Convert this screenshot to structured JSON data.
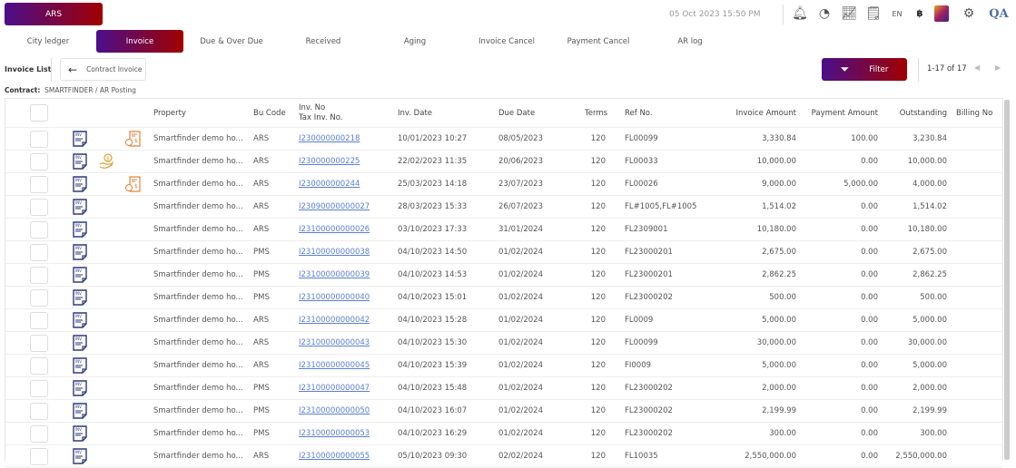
{
  "header": {
    "brand": "ARS",
    "datetime": "05 Oct 2023  15:50 PM",
    "lang": "EN",
    "currency": "฿",
    "user": "QA",
    "icons": [
      "bell-icon",
      "speedometer-icon",
      "chart-line-icon",
      "report-icon",
      "palette-icon",
      "gear-icon"
    ]
  },
  "tabs": [
    "City ledger",
    "Invoice",
    "Due & Over Due",
    "Received",
    "Aging",
    "Invoice Cancel",
    "Payment Cancel",
    "AR log"
  ],
  "active_tab": "Invoice",
  "toolbar": {
    "list_label": "Invoice List",
    "contract_button": "Contract Invoice",
    "filter_button": "Filter",
    "pager": "1-17 of 17"
  },
  "contract": {
    "label": "Contract:",
    "value": "SMARTFINDER / AR Posting"
  },
  "colors": {
    "gradient_start": "#4b0f8a",
    "gradient_end": "#a00000",
    "link": "#5a7fd6",
    "icon_orange": "#e8803a",
    "icon_navy": "#2e3a7a"
  },
  "table": {
    "headers": {
      "property": "Property",
      "bu": "Bu Code",
      "inv1": "Inv. No",
      "inv2": "Tax Inv. No.",
      "inv_date": "Inv. Date",
      "due": "Due Date",
      "terms": "Terms",
      "ref": "Ref No.",
      "amount": "Invoice Amount",
      "payment": "Payment Amount",
      "outstanding": "Outstanding",
      "billing": "Billing No"
    },
    "rows": [
      {
        "icon": "receipt",
        "property": "Smartfinder demo ho...",
        "bu": "ARS",
        "inv": "I230000000218",
        "inv_date": "10/01/2023 10:27",
        "due": "08/05/2023",
        "terms": "120",
        "ref": "FL00099",
        "amount": "3,330.84",
        "payment": "100.00",
        "outstanding": "3,230.84",
        "billing": ""
      },
      {
        "icon": "hand",
        "property": "Smartfinder demo ho...",
        "bu": "ARS",
        "inv": "I230000000225",
        "inv_date": "22/02/2023 11:35",
        "due": "20/06/2023",
        "terms": "120",
        "ref": "FL00033",
        "amount": "10,000.00",
        "payment": "0.00",
        "outstanding": "10,000.00",
        "billing": ""
      },
      {
        "icon": "receipt",
        "property": "Smartfinder demo ho...",
        "bu": "ARS",
        "inv": "I230000000244",
        "inv_date": "25/03/2023 14:18",
        "due": "23/07/2023",
        "terms": "120",
        "ref": "FL00026",
        "amount": "9,000.00",
        "payment": "5,000.00",
        "outstanding": "4,000.00",
        "billing": ""
      },
      {
        "icon": "",
        "property": "Smartfinder demo ho...",
        "bu": "ARS",
        "inv": "I23090000000027",
        "inv_date": "28/03/2023 15:33",
        "due": "26/07/2023",
        "terms": "120",
        "ref": "FL#1005,FL#1005",
        "amount": "1,514.02",
        "payment": "0.00",
        "outstanding": "1,514.02",
        "billing": ""
      },
      {
        "icon": "",
        "property": "Smartfinder demo ho...",
        "bu": "ARS",
        "inv": "I23100000000026",
        "inv_date": "03/10/2023 17:33",
        "due": "31/01/2024",
        "terms": "120",
        "ref": "FL2309001",
        "amount": "10,180.00",
        "payment": "0.00",
        "outstanding": "10,180.00",
        "billing": ""
      },
      {
        "icon": "",
        "property": "Smartfinder demo ho...",
        "bu": "PMS",
        "inv": "I23100000000038",
        "inv_date": "04/10/2023 14:50",
        "due": "01/02/2024",
        "terms": "120",
        "ref": "FL23000201",
        "amount": "2,675.00",
        "payment": "0.00",
        "outstanding": "2,675.00",
        "billing": ""
      },
      {
        "icon": "",
        "property": "Smartfinder demo ho...",
        "bu": "PMS",
        "inv": "I23100000000039",
        "inv_date": "04/10/2023 14:53",
        "due": "01/02/2024",
        "terms": "120",
        "ref": "FL23000201",
        "amount": "2,862.25",
        "payment": "0.00",
        "outstanding": "2,862.25",
        "billing": ""
      },
      {
        "icon": "",
        "property": "Smartfinder demo ho...",
        "bu": "PMS",
        "inv": "I23100000000040",
        "inv_date": "04/10/2023 15:01",
        "due": "01/02/2024",
        "terms": "120",
        "ref": "FL23000202",
        "amount": "500.00",
        "payment": "0.00",
        "outstanding": "500.00",
        "billing": ""
      },
      {
        "icon": "",
        "property": "Smartfinder demo ho...",
        "bu": "ARS",
        "inv": "I23100000000042",
        "inv_date": "04/10/2023 15:28",
        "due": "01/02/2024",
        "terms": "120",
        "ref": "FL0009",
        "amount": "5,000.00",
        "payment": "0.00",
        "outstanding": "5,000.00",
        "billing": ""
      },
      {
        "icon": "",
        "property": "Smartfinder demo ho...",
        "bu": "ARS",
        "inv": "I23100000000043",
        "inv_date": "04/10/2023 15:30",
        "due": "01/02/2024",
        "terms": "120",
        "ref": "FL00099",
        "amount": "30,000.00",
        "payment": "0.00",
        "outstanding": "30,000.00",
        "billing": ""
      },
      {
        "icon": "",
        "property": "Smartfinder demo ho...",
        "bu": "ARS",
        "inv": "I23100000000045",
        "inv_date": "04/10/2023 15:39",
        "due": "01/02/2024",
        "terms": "120",
        "ref": "FI0009",
        "amount": "5,000.00",
        "payment": "0.00",
        "outstanding": "5,000.00",
        "billing": ""
      },
      {
        "icon": "",
        "property": "Smartfinder demo ho...",
        "bu": "PMS",
        "inv": "I23100000000047",
        "inv_date": "04/10/2023 15:48",
        "due": "01/02/2024",
        "terms": "120",
        "ref": "FL23000202",
        "amount": "2,000.00",
        "payment": "0.00",
        "outstanding": "2,000.00",
        "billing": ""
      },
      {
        "icon": "",
        "property": "Smartfinder demo ho...",
        "bu": "PMS",
        "inv": "I23100000000050",
        "inv_date": "04/10/2023 16:07",
        "due": "01/02/2024",
        "terms": "120",
        "ref": "FL23000202",
        "amount": "2,199.99",
        "payment": "0.00",
        "outstanding": "2,199.99",
        "billing": ""
      },
      {
        "icon": "",
        "property": "Smartfinder demo ho...",
        "bu": "PMS",
        "inv": "I23100000000053",
        "inv_date": "04/10/2023 16:29",
        "due": "01/02/2024",
        "terms": "120",
        "ref": "FL23000202",
        "amount": "300.00",
        "payment": "0.00",
        "outstanding": "300.00",
        "billing": ""
      },
      {
        "icon": "",
        "property": "Smartfinder demo ho...",
        "bu": "ARS",
        "inv": "I23100000000055",
        "inv_date": "05/10/2023 09:30",
        "due": "02/02/2024",
        "terms": "120",
        "ref": "FL10035",
        "amount": "2,550,000.00",
        "payment": "0.00",
        "outstanding": "2,550,000.00",
        "billing": ""
      }
    ]
  }
}
